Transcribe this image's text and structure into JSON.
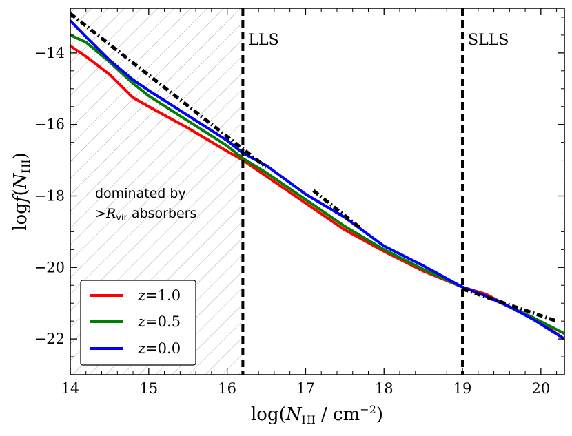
{
  "chart_data": {
    "type": "line",
    "xlabel": "log(N_HI / cm^-2)",
    "xlabel_parts": {
      "pre": "log(",
      "sym": "N",
      "sub": "HI",
      "mid": " / cm",
      "sup": "−2",
      "post": ")"
    },
    "ylabel": "log f(N_HI)",
    "ylabel_parts": {
      "pre": "log",
      "sym": "f",
      "open": "(",
      "sym2": "N",
      "sub": "HI",
      "close": ")"
    },
    "xlim": [
      14.0,
      20.3
    ],
    "ylim": [
      -23.0,
      -12.75
    ],
    "x_ticks": [
      14,
      15,
      16,
      17,
      18,
      19,
      20
    ],
    "x_tick_labels": [
      "14",
      "15",
      "16",
      "17",
      "18",
      "19",
      "20"
    ],
    "y_ticks": [
      -14,
      -16,
      -18,
      -20,
      -22
    ],
    "y_tick_labels": [
      "−14",
      "−16",
      "−18",
      "−20",
      "−22"
    ],
    "hatched_region": {
      "x_from": 14.0,
      "x_to": 16.2
    },
    "region_annotation": {
      "line1": "dominated by",
      "line2_pre": ">",
      "line2_sym": "R",
      "line2_sub": "vir",
      "line2_post": " absorbers"
    },
    "vlines": [
      {
        "x": 16.2,
        "label": "LLS"
      },
      {
        "x": 19.0,
        "label": "SLLS"
      }
    ],
    "colors": {
      "z1": "#ff0000",
      "z05": "#008000",
      "z0": "#0000ff",
      "ref": "#000000"
    },
    "series": [
      {
        "name": "z=1.0",
        "label_sym": "z",
        "label_val": "=1.0",
        "color": "#ff0000",
        "x": [
          14.0,
          14.2,
          14.5,
          14.8,
          15.0,
          15.5,
          16.0,
          16.2,
          16.5,
          17.0,
          17.5,
          18.0,
          18.5,
          19.0,
          19.3,
          19.6,
          19.9,
          20.3
        ],
        "y": [
          -13.8,
          -14.1,
          -14.6,
          -15.25,
          -15.5,
          -16.1,
          -16.75,
          -17.0,
          -17.45,
          -18.2,
          -18.95,
          -19.55,
          -20.1,
          -20.55,
          -20.75,
          -21.1,
          -21.4,
          -22.0
        ]
      },
      {
        "name": "z=0.5",
        "label_sym": "z",
        "label_val": "=0.5",
        "color": "#008000",
        "x": [
          14.0,
          14.2,
          14.5,
          14.8,
          15.0,
          15.5,
          16.0,
          16.2,
          16.5,
          17.0,
          17.5,
          18.0,
          18.5,
          19.0,
          19.3,
          19.6,
          19.9,
          20.3
        ],
        "y": [
          -13.5,
          -13.7,
          -14.25,
          -14.85,
          -15.2,
          -15.9,
          -16.6,
          -16.95,
          -17.35,
          -18.1,
          -18.85,
          -19.5,
          -20.05,
          -20.55,
          -20.8,
          -21.1,
          -21.4,
          -21.85
        ]
      },
      {
        "name": "z=0.0",
        "label_sym": "z",
        "label_val": "=0.0",
        "color": "#0000ff",
        "x": [
          14.0,
          14.2,
          14.5,
          14.8,
          15.0,
          15.5,
          16.0,
          16.2,
          16.5,
          17.0,
          17.5,
          18.0,
          18.5,
          19.0,
          19.3,
          19.6,
          19.9,
          20.3
        ],
        "y": [
          -13.1,
          -13.55,
          -14.2,
          -14.75,
          -15.05,
          -15.75,
          -16.45,
          -16.8,
          -17.15,
          -17.95,
          -18.6,
          -19.4,
          -19.95,
          -20.55,
          -20.8,
          -21.1,
          -21.45,
          -22.0
        ]
      }
    ],
    "reference_lines": [
      {
        "name": "power-law fit (low N)",
        "style": "dash-dot",
        "x": [
          14.0,
          16.5
        ],
        "y": [
          -12.9,
          -17.2
        ]
      },
      {
        "name": "power-law fit (mid N)",
        "style": "dash-dot",
        "x": [
          17.1,
          17.7
        ],
        "y": [
          -17.85,
          -18.9
        ]
      },
      {
        "name": "power-law fit (high N)",
        "style": "dash-dot",
        "x": [
          19.0,
          20.2
        ],
        "y": [
          -20.6,
          -21.5
        ]
      }
    ],
    "legend": {
      "placement": "lower-left"
    }
  }
}
